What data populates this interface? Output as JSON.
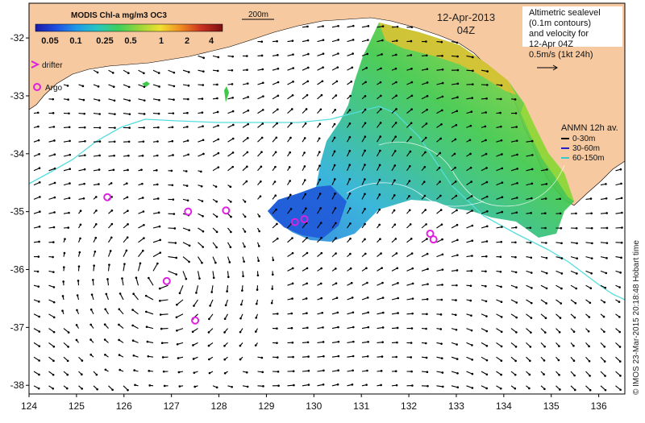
{
  "colorbar": {
    "title": "MODIS Chl-a mg/m3 OC3",
    "ticks": [
      "0.05",
      "0.1",
      "0.25",
      "0.5",
      "1",
      "2",
      "4"
    ],
    "gradient": [
      "#1a1aa8",
      "#1f4fe0",
      "#1f9be8",
      "#28c6c0",
      "#3fcf5a",
      "#9ad63a",
      "#f0e030",
      "#f08a20",
      "#c83020",
      "#7a1010"
    ]
  },
  "scale_label": "200m",
  "date_label": "12-Apr-2013",
  "time_label": "04Z",
  "markers_legend": {
    "drifter": "drifter",
    "argo": "Argo"
  },
  "velocity_legend": {
    "lines": [
      "Altimetric sealevel",
      "(0.1m contours)",
      "and velocity for",
      "12-Apr 04Z",
      "0.5m/s (1kt 24h)"
    ]
  },
  "anmn_legend": {
    "title": "ANMN 12h av.",
    "items": [
      {
        "label": "0-30m",
        "color": "#000000"
      },
      {
        "label": "30-60m",
        "color": "#2222cc"
      },
      {
        "label": "60-150m",
        "color": "#33cccc"
      }
    ]
  },
  "credit": "© IMOS 23-Mar-2015 20:18:48 Hobart time",
  "axes": {
    "x_ticks": [
      "124",
      "125",
      "126",
      "127",
      "128",
      "129",
      "130",
      "131",
      "132",
      "133",
      "134",
      "135",
      "136"
    ],
    "x_values": [
      124,
      125,
      126,
      127,
      128,
      129,
      130,
      131,
      132,
      133,
      134,
      135,
      136
    ],
    "y_ticks": [
      "-32",
      "-33",
      "-34",
      "-35",
      "-36",
      "-37",
      "-38"
    ],
    "y_values": [
      -32,
      -33,
      -34,
      -35,
      -36,
      -37,
      -38
    ],
    "lon_range": [
      124,
      136.55
    ],
    "lat_range": [
      -38.15,
      -31.4
    ]
  },
  "argo_floats": [
    {
      "lon": 125.65,
      "lat": -34.75
    },
    {
      "lon": 127.35,
      "lat": -35.0
    },
    {
      "lon": 128.15,
      "lat": -34.98
    },
    {
      "lon": 129.6,
      "lat": -35.18
    },
    {
      "lon": 129.8,
      "lat": -35.13
    },
    {
      "lon": 132.45,
      "lat": -35.38
    },
    {
      "lon": 132.52,
      "lat": -35.48
    },
    {
      "lon": 126.9,
      "lat": -36.2
    },
    {
      "lon": 127.5,
      "lat": -36.88
    }
  ],
  "colors": {
    "land": "#f7c9a0",
    "shelf_line": "#55dddd",
    "arrow": "#000000",
    "argo": "#e020e0",
    "frame": "#000000"
  }
}
